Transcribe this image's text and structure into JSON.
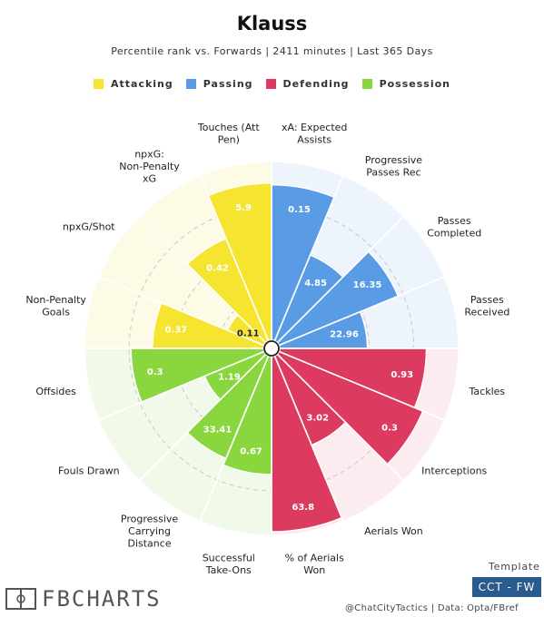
{
  "header": {
    "title": "Klauss",
    "subtitle": "Percentile rank vs. Forwards | 2411 minutes | Last 365 Days"
  },
  "legend": [
    {
      "label": "Attacking",
      "color": "#f5e531"
    },
    {
      "label": "Passing",
      "color": "#5a9be6"
    },
    {
      "label": "Defending",
      "color": "#dc3b5f"
    },
    {
      "label": "Possession",
      "color": "#89d63e"
    }
  ],
  "chart_data": {
    "type": "polar-bar",
    "categories": [
      {
        "label": "xA: Expected Assists",
        "group": "Passing",
        "value": 0.15,
        "percentile": 87
      },
      {
        "label": "Progressive Passes Rec",
        "group": "Passing",
        "value": 4.85,
        "percentile": 52
      },
      {
        "label": "Passes Completed",
        "group": "Passing",
        "value": 16.35,
        "percentile": 72
      },
      {
        "label": "Passes Received",
        "group": "Passing",
        "value": 22.96,
        "percentile": 49
      },
      {
        "label": "Tackles",
        "group": "Defending",
        "value": 0.93,
        "percentile": 82
      },
      {
        "label": "Interceptions",
        "group": "Defending",
        "value": 0.3,
        "percentile": 87
      },
      {
        "label": "Aerials Won",
        "group": "Defending",
        "value": 3.02,
        "percentile": 54
      },
      {
        "label": "% of Aerials Won",
        "group": "Defending",
        "value": 63.8,
        "percentile": 98
      },
      {
        "label": "Successful Take-Ons",
        "group": "Possession",
        "value": 0.67,
        "percentile": 66
      },
      {
        "label": "Progressive Carrying Distance",
        "group": "Possession",
        "value": 33.41,
        "percentile": 62
      },
      {
        "label": "Fouls Drawn",
        "group": "Possession",
        "value": 1.19,
        "percentile": 36
      },
      {
        "label": "Offsides",
        "group": "Possession",
        "value": 0.3,
        "percentile": 74
      },
      {
        "label": "Non-Penalty Goals",
        "group": "Attacking",
        "value": 0.37,
        "percentile": 62
      },
      {
        "label": "npxG/Shot",
        "group": "Attacking",
        "value": 0.11,
        "percentile": 22
      },
      {
        "label": "npxG: Non-Penalty xG",
        "group": "Attacking",
        "value": 0.42,
        "percentile": 62
      },
      {
        "label": "Touches (Att Pen)",
        "group": "Attacking",
        "value": 5.9,
        "percentile": 88
      }
    ],
    "rlim": [
      0,
      100
    ],
    "grid": true
  },
  "template": {
    "label": "Template",
    "badge": "CCT - FW"
  },
  "footer": "@ChatCityTactics | Data: Opta/FBref",
  "brand": "FBCHARTS"
}
